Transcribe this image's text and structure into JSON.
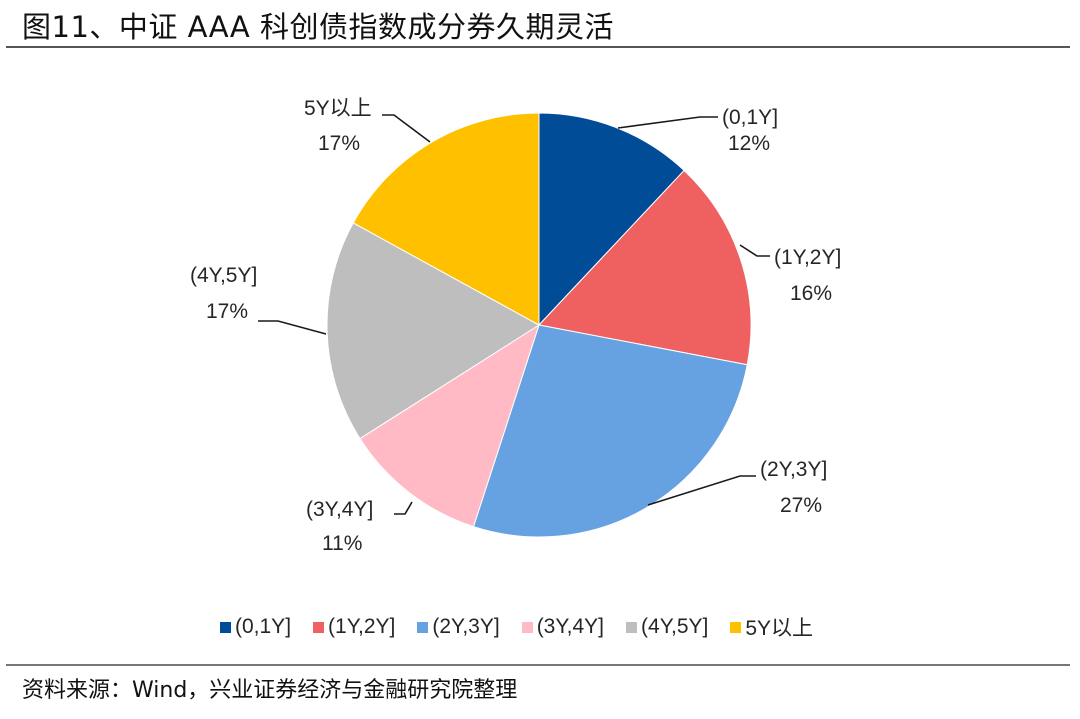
{
  "title": "图11、中证 AAA 科创债指数成分券久期灵活",
  "source": "资料来源：Wind，兴业证券经济与金融研究院整理",
  "chart_data": {
    "type": "pie",
    "title": "图11、中证 AAA 科创债指数成分券久期灵活",
    "start_angle": "12 o'clock, clockwise",
    "categories": [
      "(0,1Y]",
      "(1Y,2Y]",
      "(2Y,3Y]",
      "(3Y,4Y]",
      "(4Y,5Y]",
      "5Y以上"
    ],
    "values": [
      12,
      16,
      27,
      11,
      17,
      17
    ],
    "value_labels": [
      "12%",
      "16%",
      "27%",
      "11%",
      "17%",
      "17%"
    ],
    "colors": [
      "#004C97",
      "#EF6161",
      "#66A2E2",
      "#FFBAC6",
      "#BEBEBE",
      "#FFC000"
    ],
    "legend_position": "bottom",
    "data_labels": "category and percent, outside with leader lines"
  },
  "legend": [
    {
      "label": "(0,1Y]",
      "color": "#004C97"
    },
    {
      "label": "(1Y,2Y]",
      "color": "#EF6161"
    },
    {
      "label": "(2Y,3Y]",
      "color": "#66A2E2"
    },
    {
      "label": "(3Y,4Y]",
      "color": "#FFBAC6"
    },
    {
      "label": "(4Y,5Y]",
      "color": "#BEBEBE"
    },
    {
      "label": "5Y以上",
      "color": "#FFC000"
    }
  ],
  "labels": [
    {
      "cat": "(0,1Y]",
      "pct": "12%"
    },
    {
      "cat": "(1Y,2Y]",
      "pct": "16%"
    },
    {
      "cat": "(2Y,3Y]",
      "pct": "27%"
    },
    {
      "cat": "(3Y,4Y]",
      "pct": "11%"
    },
    {
      "cat": "(4Y,5Y]",
      "pct": "17%"
    },
    {
      "cat": "5Y以上",
      "pct": "17%"
    }
  ]
}
